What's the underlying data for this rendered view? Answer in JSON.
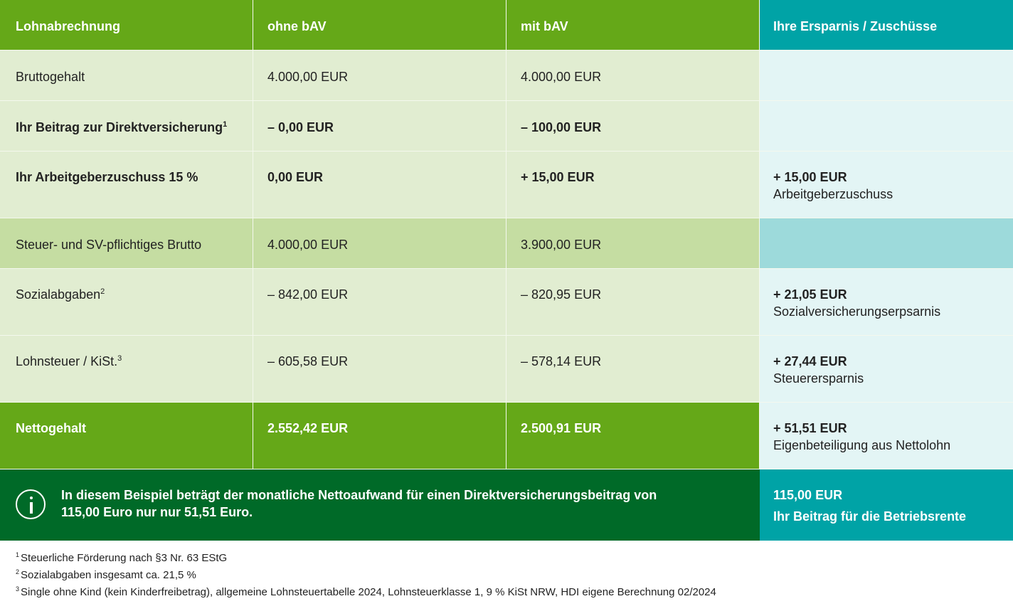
{
  "header": {
    "col1": "Lohnabrechnung",
    "col2": "ohne bAV",
    "col3": "mit bAV",
    "col4": "Ihre Ersparnis / Zuschüsse"
  },
  "rows": [
    {
      "label": "Bruttogehalt",
      "sup": "",
      "ohne": "4.000,00 EUR",
      "mit": "4.000,00 EUR",
      "saving_value": "",
      "saving_label": ""
    },
    {
      "label": "Ihr Beitrag zur Direktversicherung",
      "sup": "1",
      "ohne": "– 0,00 EUR",
      "mit": "– 100,00 EUR",
      "saving_value": "",
      "saving_label": ""
    },
    {
      "label": "Ihr Arbeitgeberzuschuss 15 %",
      "sup": "",
      "ohne": "0,00 EUR",
      "mit": "+ 15,00 EUR",
      "saving_value": "+ 15,00 EUR",
      "saving_label": "Arbeitgeberzuschuss"
    },
    {
      "label": "Steuer- und SV-pflichtiges Brutto",
      "sup": "",
      "ohne": "4.000,00 EUR",
      "mit": "3.900,00 EUR",
      "saving_value": "",
      "saving_label": ""
    },
    {
      "label": "Sozialabgaben",
      "sup": "2",
      "ohne": "– 842,00 EUR",
      "mit": "– 820,95 EUR",
      "saving_value": "+ 21,05 EUR",
      "saving_label": "Sozialversicherungserpsarnis"
    },
    {
      "label": "Lohnsteuer / KiSt.",
      "sup": "3",
      "ohne": "– 605,58 EUR",
      "mit": "– 578,14 EUR",
      "saving_value": "+ 27,44 EUR",
      "saving_label": "Steuerersparnis"
    },
    {
      "label": "Nettogehalt",
      "sup": "",
      "ohne": "2.552,42 EUR",
      "mit": "2.500,91 EUR",
      "saving_value": "+ 51,51 EUR",
      "saving_label": "Eigenbeteiligung aus Nettolohn"
    }
  ],
  "summary": {
    "text_line1": "In diesem Beispiel beträgt der monatliche Nettoaufwand für einen Direktversicherungsbeitrag von",
    "text_line2": "115,00 Euro nur nur 51,51 Euro.",
    "amount": "115,00 EUR",
    "amount_label": "Ihr Beitrag für die Betriebsrente",
    "icon": "info-icon"
  },
  "footnotes": [
    {
      "num": "1",
      "text": "Steuerliche Förderung nach §3 Nr. 63 EStG"
    },
    {
      "num": "2",
      "text": "Sozialabgaben insgesamt ca. 21,5 %"
    },
    {
      "num": "3",
      "text": "Single ohne Kind (kein Kinderfreibetrag), allgemeine Lohnsteuertabelle 2024, Lohnsteuerklasse 1, 9 % KiSt NRW, HDI eigene Berechnung 02/2024"
    }
  ],
  "colors": {
    "header_green": "#65a818",
    "header_teal": "#00a3a6",
    "light_green": "#e1edd1",
    "mid_green": "#c5dda2",
    "light_teal": "#e3f5f5",
    "mid_teal": "#9ddadb",
    "dark_green": "#006a28"
  }
}
